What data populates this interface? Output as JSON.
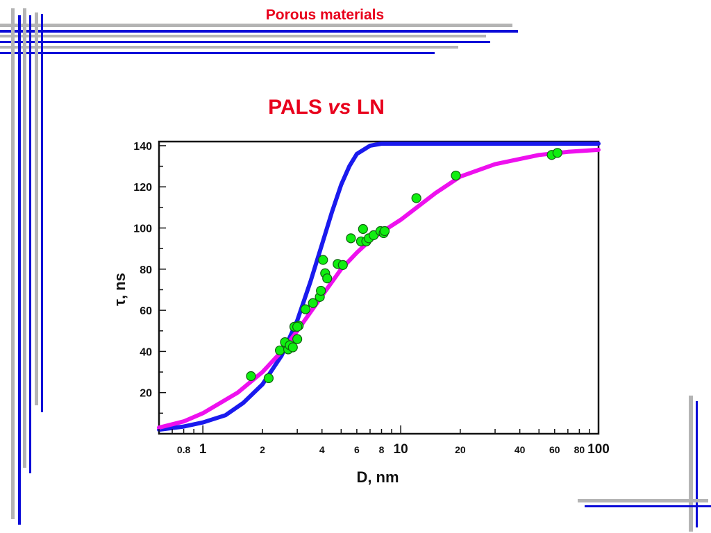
{
  "header": {
    "title": "Porous materials"
  },
  "slide": {
    "title_part1": "PALS ",
    "title_italic": "vs",
    "title_part2": " LN"
  },
  "colors": {
    "accent_red": "#e8001c",
    "deco_blue": "#0a0ad8",
    "deco_gray": "#b4b4b4",
    "curve_blue": "#1a1aee",
    "curve_magenta": "#ee10ee",
    "points_fill": "#10ee10",
    "points_stroke": "#106010"
  },
  "chart_data": {
    "type": "scatter",
    "title": "",
    "xlabel": "D, nm",
    "ylabel": "τ, ns",
    "x_scale": "log",
    "xlim": [
      0.6,
      100
    ],
    "ylim": [
      0,
      142
    ],
    "x_ticks": [
      0.8,
      1,
      2,
      4,
      6,
      8,
      10,
      20,
      40,
      60,
      80,
      100
    ],
    "x_tick_labels": [
      "0.8",
      "1",
      "2",
      "4",
      "6",
      "8",
      "10",
      "20",
      "40",
      "60",
      "80",
      "100"
    ],
    "y_ticks": [
      20,
      40,
      60,
      80,
      100,
      120,
      140
    ],
    "y_tick_labels": [
      "20",
      "40",
      "60",
      "80",
      "100",
      "120",
      "140"
    ],
    "grid": false,
    "series": [
      {
        "kind": "curve",
        "color": "#1a1aee",
        "x": [
          0.6,
          0.8,
          1.0,
          1.3,
          1.6,
          2.0,
          2.5,
          3.0,
          3.5,
          4.0,
          4.5,
          5.0,
          5.5,
          6.0,
          7.0,
          8.0,
          10,
          20,
          100
        ],
        "values": [
          2,
          3.5,
          5.5,
          9,
          15,
          24,
          38,
          55,
          74,
          92,
          108,
          121,
          130,
          136,
          140,
          141,
          141,
          141,
          141
        ]
      },
      {
        "kind": "curve",
        "color": "#ee10ee",
        "x": [
          0.6,
          0.8,
          1.0,
          1.5,
          2.0,
          2.5,
          3.0,
          4.0,
          5.0,
          6.0,
          7.0,
          8.0,
          10,
          15,
          20,
          30,
          50,
          70,
          100
        ],
        "values": [
          3,
          6,
          10,
          20,
          30,
          40,
          50,
          67,
          80,
          88,
          94,
          98,
          104,
          117,
          125,
          131,
          135.5,
          137,
          138
        ]
      },
      {
        "kind": "points",
        "x": [
          1.75,
          2.15,
          2.45,
          2.6,
          2.7,
          2.75,
          2.85,
          2.9,
          3.0,
          3.05,
          3.0,
          3.3,
          3.6,
          3.9,
          3.95,
          4.05,
          4.15,
          4.25,
          4.8,
          5.1,
          5.6,
          6.3,
          6.45,
          6.7,
          6.9,
          7.3,
          7.9,
          8.2,
          8.3,
          12,
          19,
          58,
          62
        ],
        "values": [
          28,
          27,
          40.5,
          44.5,
          41,
          43,
          42,
          52,
          46,
          52.5,
          52,
          60.5,
          63.5,
          66.5,
          69.5,
          84.5,
          78,
          75.5,
          82.5,
          82,
          95,
          93.5,
          99.5,
          93.5,
          95,
          96.5,
          98.5,
          97.5,
          98.5,
          114.5,
          125.5,
          135.5,
          136.5
        ]
      }
    ]
  }
}
